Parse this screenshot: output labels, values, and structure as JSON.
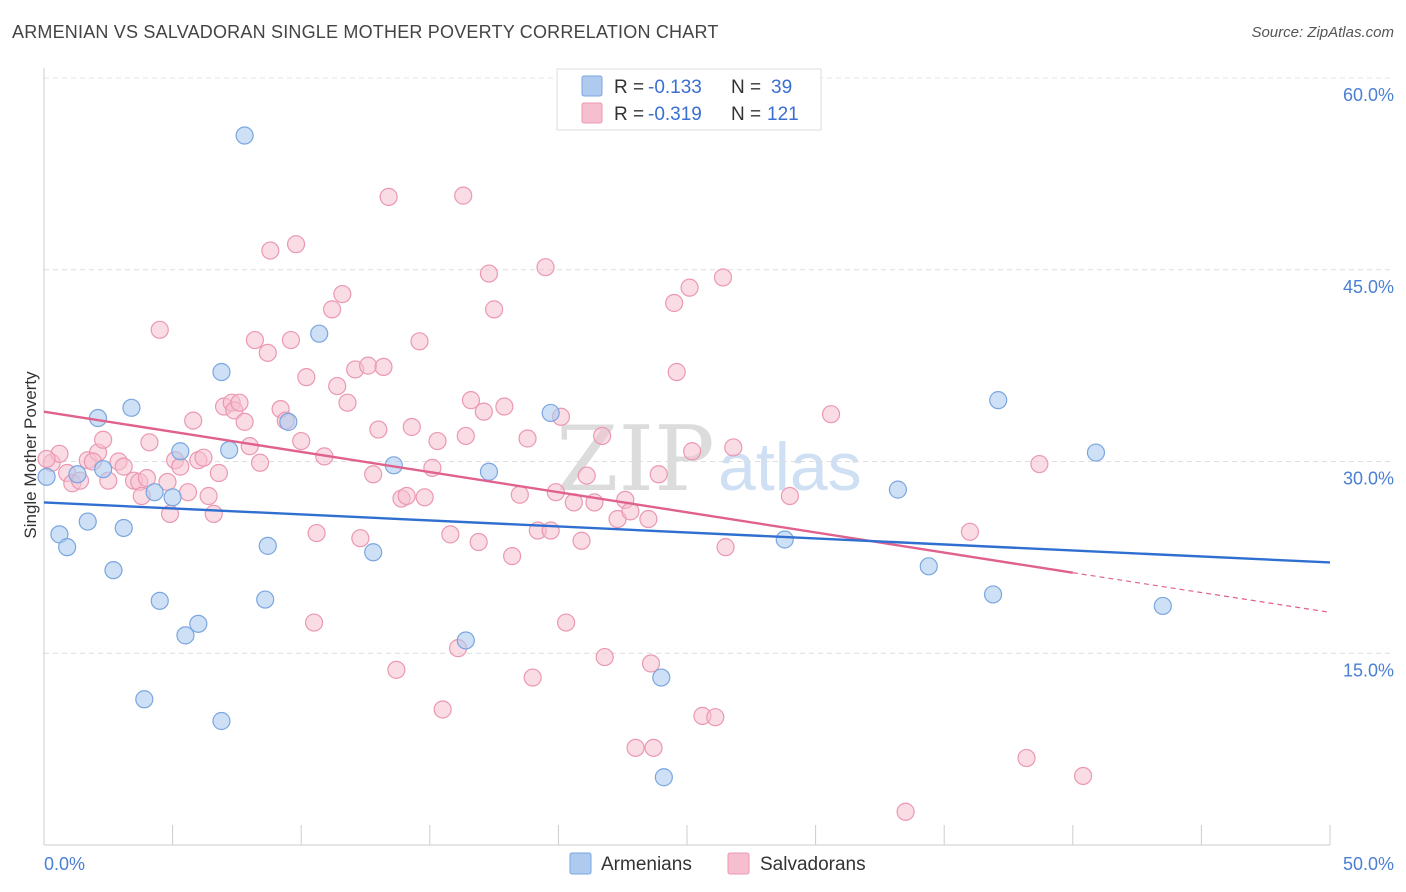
{
  "header": {
    "title": "ARMENIAN VS SALVADORAN SINGLE MOTHER POVERTY CORRELATION CHART",
    "source": "Source: ZipAtlas.com"
  },
  "watermark": {
    "zip": "ZIP",
    "atlas": "atlas"
  },
  "legend": {
    "r_label": "R =",
    "n_label": "N =",
    "rows": [
      {
        "r": "-0.133",
        "n": "39"
      },
      {
        "r": "-0.319",
        "n": "121"
      }
    ]
  },
  "bottom_legend": [
    "Armenians",
    "Salvadorans"
  ],
  "colors": {
    "armenian_fill": "#aecbef",
    "armenian_stroke": "#7aa6e0",
    "armenian_line": "#2f6fd0",
    "salvadoran_fill": "#f6bfd0",
    "salvadoran_stroke": "#eb98b2",
    "salvadoran_line": "#e0608e",
    "tick": "#4a7fd4"
  },
  "chart_data": {
    "type": "scatter",
    "title": "ARMENIAN VS SALVADORAN SINGLE MOTHER POVERTY CORRELATION CHART",
    "xlabel": "",
    "ylabel": "Single Mother Poverty",
    "xlim": [
      0,
      50
    ],
    "ylim": [
      0,
      60
    ],
    "x_tick_labels": [
      "0.0%",
      "50.0%"
    ],
    "y_ticks": [
      15,
      30,
      45,
      60
    ],
    "y_tick_labels": [
      "15.0%",
      "30.0%",
      "45.0%",
      "60.0%"
    ],
    "grid": true,
    "legend_position": "top-center",
    "series": [
      {
        "name": "Armenians",
        "r": -0.133,
        "n": 39,
        "trend": {
          "x": [
            0,
            50
          ],
          "y": [
            26.8,
            22.1
          ]
        },
        "points": [
          [
            0.1,
            28.8
          ],
          [
            0.6,
            24.3
          ],
          [
            0.9,
            23.3
          ],
          [
            1.3,
            29.0
          ],
          [
            1.7,
            25.3
          ],
          [
            2.1,
            33.4
          ],
          [
            2.3,
            29.4
          ],
          [
            2.7,
            21.5
          ],
          [
            3.1,
            24.8
          ],
          [
            3.4,
            34.2
          ],
          [
            3.9,
            11.4
          ],
          [
            4.3,
            27.6
          ],
          [
            4.5,
            19.1
          ],
          [
            5.0,
            27.2
          ],
          [
            5.3,
            30.8
          ],
          [
            5.5,
            16.4
          ],
          [
            6.0,
            17.3
          ],
          [
            6.9,
            37.0
          ],
          [
            6.9,
            9.7
          ],
          [
            7.2,
            30.9
          ],
          [
            7.8,
            55.5
          ],
          [
            8.6,
            19.2
          ],
          [
            8.7,
            23.4
          ],
          [
            9.5,
            33.1
          ],
          [
            10.7,
            40.0
          ],
          [
            12.8,
            22.9
          ],
          [
            13.6,
            29.7
          ],
          [
            16.4,
            16.0
          ],
          [
            17.3,
            29.2
          ],
          [
            19.7,
            33.8
          ],
          [
            24.0,
            13.1
          ],
          [
            24.1,
            5.3
          ],
          [
            28.8,
            23.9
          ],
          [
            33.2,
            27.8
          ],
          [
            34.4,
            21.8
          ],
          [
            36.9,
            19.6
          ],
          [
            37.1,
            34.8
          ],
          [
            40.9,
            30.7
          ],
          [
            43.5,
            18.7
          ]
        ]
      },
      {
        "name": "Salvadorans",
        "r": -0.319,
        "n": 121,
        "trend_solid": {
          "x": [
            0,
            40
          ],
          "y": [
            33.9,
            21.3
          ]
        },
        "trend_dashed": {
          "x": [
            40,
            50
          ],
          "y": [
            21.3,
            18.2
          ]
        },
        "points": [
          [
            0.3,
            29.9
          ],
          [
            0.6,
            30.6
          ],
          [
            0.9,
            29.1
          ],
          [
            1.1,
            28.3
          ],
          [
            1.4,
            28.5
          ],
          [
            1.7,
            30.1
          ],
          [
            2.1,
            30.7
          ],
          [
            2.3,
            31.7
          ],
          [
            2.5,
            28.5
          ],
          [
            2.9,
            30.0
          ],
          [
            3.1,
            29.6
          ],
          [
            3.5,
            28.5
          ],
          [
            3.7,
            28.4
          ],
          [
            3.8,
            27.3
          ],
          [
            4.0,
            28.7
          ],
          [
            4.1,
            31.5
          ],
          [
            4.5,
            40.3
          ],
          [
            4.8,
            28.4
          ],
          [
            4.9,
            25.9
          ],
          [
            5.1,
            30.1
          ],
          [
            5.3,
            29.6
          ],
          [
            5.6,
            27.6
          ],
          [
            5.8,
            33.2
          ],
          [
            6.0,
            30.1
          ],
          [
            6.2,
            30.3
          ],
          [
            6.4,
            27.3
          ],
          [
            6.6,
            25.9
          ],
          [
            6.8,
            29.1
          ],
          [
            7.0,
            34.3
          ],
          [
            7.3,
            34.6
          ],
          [
            7.4,
            34.0
          ],
          [
            7.6,
            34.6
          ],
          [
            7.8,
            33.1
          ],
          [
            8.0,
            31.2
          ],
          [
            8.2,
            39.5
          ],
          [
            8.4,
            29.9
          ],
          [
            8.7,
            38.5
          ],
          [
            8.8,
            46.5
          ],
          [
            9.2,
            34.1
          ],
          [
            9.4,
            33.2
          ],
          [
            9.6,
            39.5
          ],
          [
            9.8,
            47.0
          ],
          [
            10.0,
            31.6
          ],
          [
            10.2,
            36.6
          ],
          [
            10.5,
            17.4
          ],
          [
            10.6,
            24.4
          ],
          [
            10.9,
            30.4
          ],
          [
            11.2,
            41.9
          ],
          [
            11.4,
            35.9
          ],
          [
            11.6,
            43.1
          ],
          [
            11.8,
            34.6
          ],
          [
            12.1,
            37.2
          ],
          [
            12.3,
            24.0
          ],
          [
            12.6,
            37.5
          ],
          [
            12.8,
            29.0
          ],
          [
            13.0,
            32.5
          ],
          [
            13.2,
            37.4
          ],
          [
            13.4,
            50.7
          ],
          [
            13.7,
            13.7
          ],
          [
            13.9,
            27.1
          ],
          [
            14.1,
            27.3
          ],
          [
            14.3,
            32.7
          ],
          [
            14.6,
            39.4
          ],
          [
            14.8,
            27.2
          ],
          [
            15.1,
            29.5
          ],
          [
            15.3,
            31.6
          ],
          [
            15.5,
            10.6
          ],
          [
            15.8,
            24.3
          ],
          [
            16.1,
            15.4
          ],
          [
            16.3,
            50.8
          ],
          [
            16.4,
            32.0
          ],
          [
            16.6,
            34.8
          ],
          [
            16.9,
            23.7
          ],
          [
            17.1,
            33.9
          ],
          [
            17.3,
            44.7
          ],
          [
            17.5,
            41.9
          ],
          [
            17.9,
            34.3
          ],
          [
            18.2,
            22.6
          ],
          [
            18.5,
            27.4
          ],
          [
            18.8,
            31.8
          ],
          [
            19.0,
            13.1
          ],
          [
            19.2,
            24.6
          ],
          [
            19.5,
            45.2
          ],
          [
            19.7,
            24.6
          ],
          [
            19.9,
            27.6
          ],
          [
            20.1,
            33.5
          ],
          [
            20.3,
            17.4
          ],
          [
            20.6,
            26.8
          ],
          [
            20.9,
            23.8
          ],
          [
            21.1,
            28.9
          ],
          [
            21.4,
            26.8
          ],
          [
            21.7,
            32.0
          ],
          [
            21.8,
            14.7
          ],
          [
            22.3,
            25.5
          ],
          [
            22.6,
            27.0
          ],
          [
            22.8,
            26.1
          ],
          [
            23.0,
            7.6
          ],
          [
            23.5,
            25.5
          ],
          [
            23.6,
            14.2
          ],
          [
            23.7,
            7.6
          ],
          [
            23.9,
            29.0
          ],
          [
            24.5,
            42.4
          ],
          [
            24.6,
            37.0
          ],
          [
            25.1,
            43.6
          ],
          [
            25.2,
            30.8
          ],
          [
            25.6,
            10.1
          ],
          [
            26.1,
            10.0
          ],
          [
            26.4,
            44.4
          ],
          [
            26.5,
            23.3
          ],
          [
            26.8,
            31.1
          ],
          [
            29.0,
            27.3
          ],
          [
            30.6,
            33.7
          ],
          [
            36.0,
            24.5
          ],
          [
            38.2,
            6.8
          ],
          [
            38.7,
            29.8
          ],
          [
            40.4,
            5.4
          ],
          [
            33.5,
            2.6
          ],
          [
            0.1,
            30.2
          ],
          [
            1.9,
            30.0
          ]
        ]
      }
    ]
  }
}
